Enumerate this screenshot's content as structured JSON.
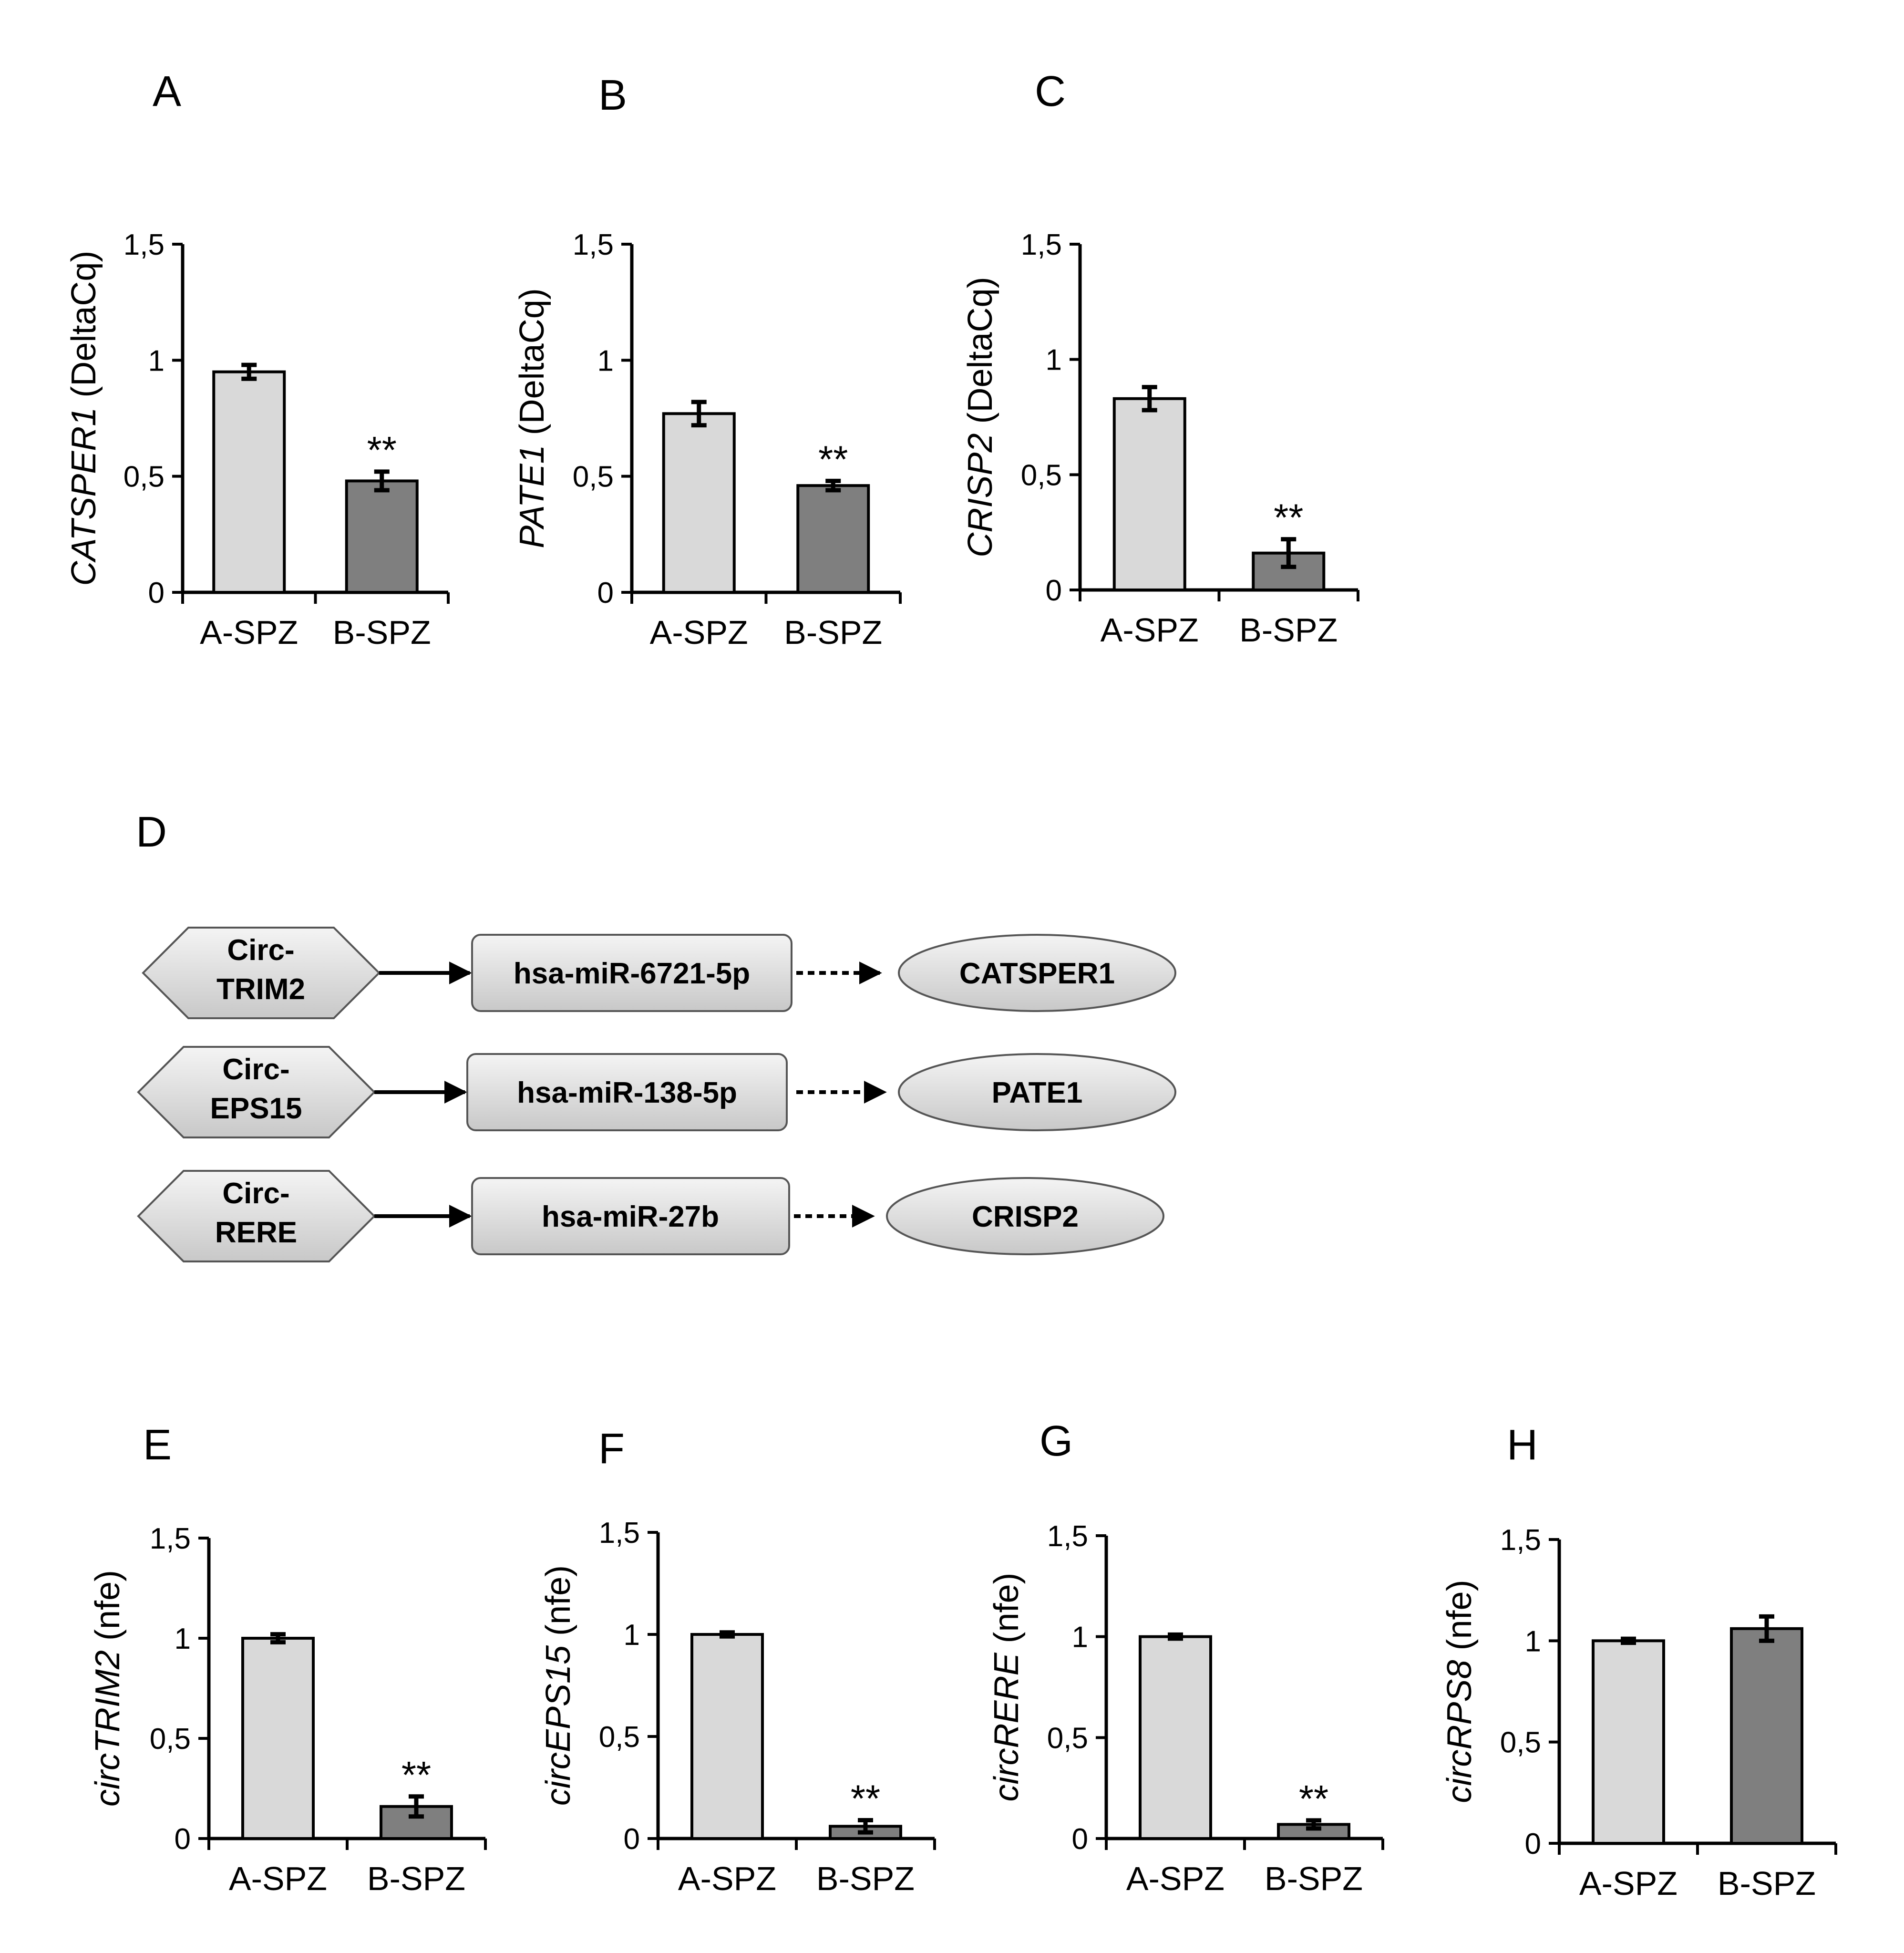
{
  "figure": {
    "panel_letters": [
      "A",
      "B",
      "C",
      "D",
      "E",
      "F",
      "G",
      "H"
    ]
  },
  "colors": {
    "group_a_fill": "#d9d9d9",
    "group_b_fill": "#7f7f7f",
    "axis": "#000000",
    "node_fill_light": "#f2f2f2",
    "node_fill_dark": "#cfcfcf",
    "node_stroke": "#555555"
  },
  "chart_data": [
    {
      "panel": "A",
      "type": "bar",
      "title": "",
      "ylabel_italic": "CATSPER1",
      "ylabel_rest": " (DeltaCq)",
      "categories": [
        "A-SPZ",
        "B-SPZ"
      ],
      "values": [
        0.95,
        0.48
      ],
      "errors": [
        0.03,
        0.04
      ],
      "significance": [
        "",
        "**"
      ],
      "ylim": [
        0,
        1.5
      ],
      "yticks": [
        0,
        0.5,
        1,
        1.5
      ],
      "yticklabels": [
        "0",
        "0,5",
        "1",
        "1,5"
      ]
    },
    {
      "panel": "B",
      "type": "bar",
      "title": "",
      "ylabel_italic": "PATE1",
      "ylabel_rest": " (DeltaCq)",
      "categories": [
        "A-SPZ",
        "B-SPZ"
      ],
      "values": [
        0.77,
        0.46
      ],
      "errors": [
        0.05,
        0.02
      ],
      "significance": [
        "",
        "**"
      ],
      "ylim": [
        0,
        1.5
      ],
      "yticks": [
        0,
        0.5,
        1,
        1.5
      ],
      "yticklabels": [
        "0",
        "0,5",
        "1",
        "1,5"
      ]
    },
    {
      "panel": "C",
      "type": "bar",
      "title": "",
      "ylabel_italic": "CRISP2",
      "ylabel_rest": " (DeltaCq)",
      "categories": [
        "A-SPZ",
        "B-SPZ"
      ],
      "values": [
        0.83,
        0.16
      ],
      "errors": [
        0.05,
        0.06
      ],
      "significance": [
        "",
        "**"
      ],
      "ylim": [
        0,
        1.5
      ],
      "yticks": [
        0,
        0.5,
        1,
        1.5
      ],
      "yticklabels": [
        "0",
        "0,5",
        "1",
        "1,5"
      ]
    },
    {
      "panel": "E",
      "type": "bar",
      "title": "",
      "ylabel_italic": "circTRIM2",
      "ylabel_rest": " (nfe)",
      "categories": [
        "A-SPZ",
        "B-SPZ"
      ],
      "values": [
        1.0,
        0.16
      ],
      "errors": [
        0.02,
        0.05
      ],
      "significance": [
        "",
        "**"
      ],
      "ylim": [
        0,
        1.5
      ],
      "yticks": [
        0,
        0.5,
        1,
        1.5
      ],
      "yticklabels": [
        "0",
        "0,5",
        "1",
        "1,5"
      ]
    },
    {
      "panel": "F",
      "type": "bar",
      "title": "",
      "ylabel_italic": "circEPS15",
      "ylabel_rest": " (nfe)",
      "categories": [
        "A-SPZ",
        "B-SPZ"
      ],
      "values": [
        1.0,
        0.06
      ],
      "errors": [
        0.01,
        0.03
      ],
      "significance": [
        "",
        "**"
      ],
      "ylim": [
        0,
        1.5
      ],
      "yticks": [
        0,
        0.5,
        1,
        1.5
      ],
      "yticklabels": [
        "0",
        "0,5",
        "1",
        "1,5"
      ]
    },
    {
      "panel": "G",
      "type": "bar",
      "title": "",
      "ylabel_italic": "circRERE",
      "ylabel_rest": " (nfe)",
      "categories": [
        "A-SPZ",
        "B-SPZ"
      ],
      "values": [
        1.0,
        0.07
      ],
      "errors": [
        0.01,
        0.02
      ],
      "significance": [
        "",
        "**"
      ],
      "ylim": [
        0,
        1.5
      ],
      "yticks": [
        0,
        0.5,
        1,
        1.5
      ],
      "yticklabels": [
        "0",
        "0,5",
        "1",
        "1,5"
      ]
    },
    {
      "panel": "H",
      "type": "bar",
      "title": "",
      "ylabel_italic": "circRPS8",
      "ylabel_rest": " (nfe)",
      "categories": [
        "A-SPZ",
        "B-SPZ"
      ],
      "values": [
        1.0,
        1.06
      ],
      "errors": [
        0.01,
        0.06
      ],
      "significance": [
        "",
        ""
      ],
      "ylim": [
        0,
        1.5
      ],
      "yticks": [
        0,
        0.5,
        1,
        1.5
      ],
      "yticklabels": [
        "0",
        "0,5",
        "1",
        "1,5"
      ]
    }
  ],
  "diagram": {
    "panel": "D",
    "rows": [
      {
        "circ": [
          "Circ-",
          "TRIM2"
        ],
        "mirna": "hsa-miR-6721-5p",
        "target": "CATSPER1"
      },
      {
        "circ": [
          "Circ-",
          "EPS15"
        ],
        "mirna": "hsa-miR-138-5p",
        "target": "PATE1"
      },
      {
        "circ": [
          "Circ-",
          "RERE"
        ],
        "mirna": "hsa-miR-27b",
        "target": "CRISP2"
      }
    ]
  }
}
